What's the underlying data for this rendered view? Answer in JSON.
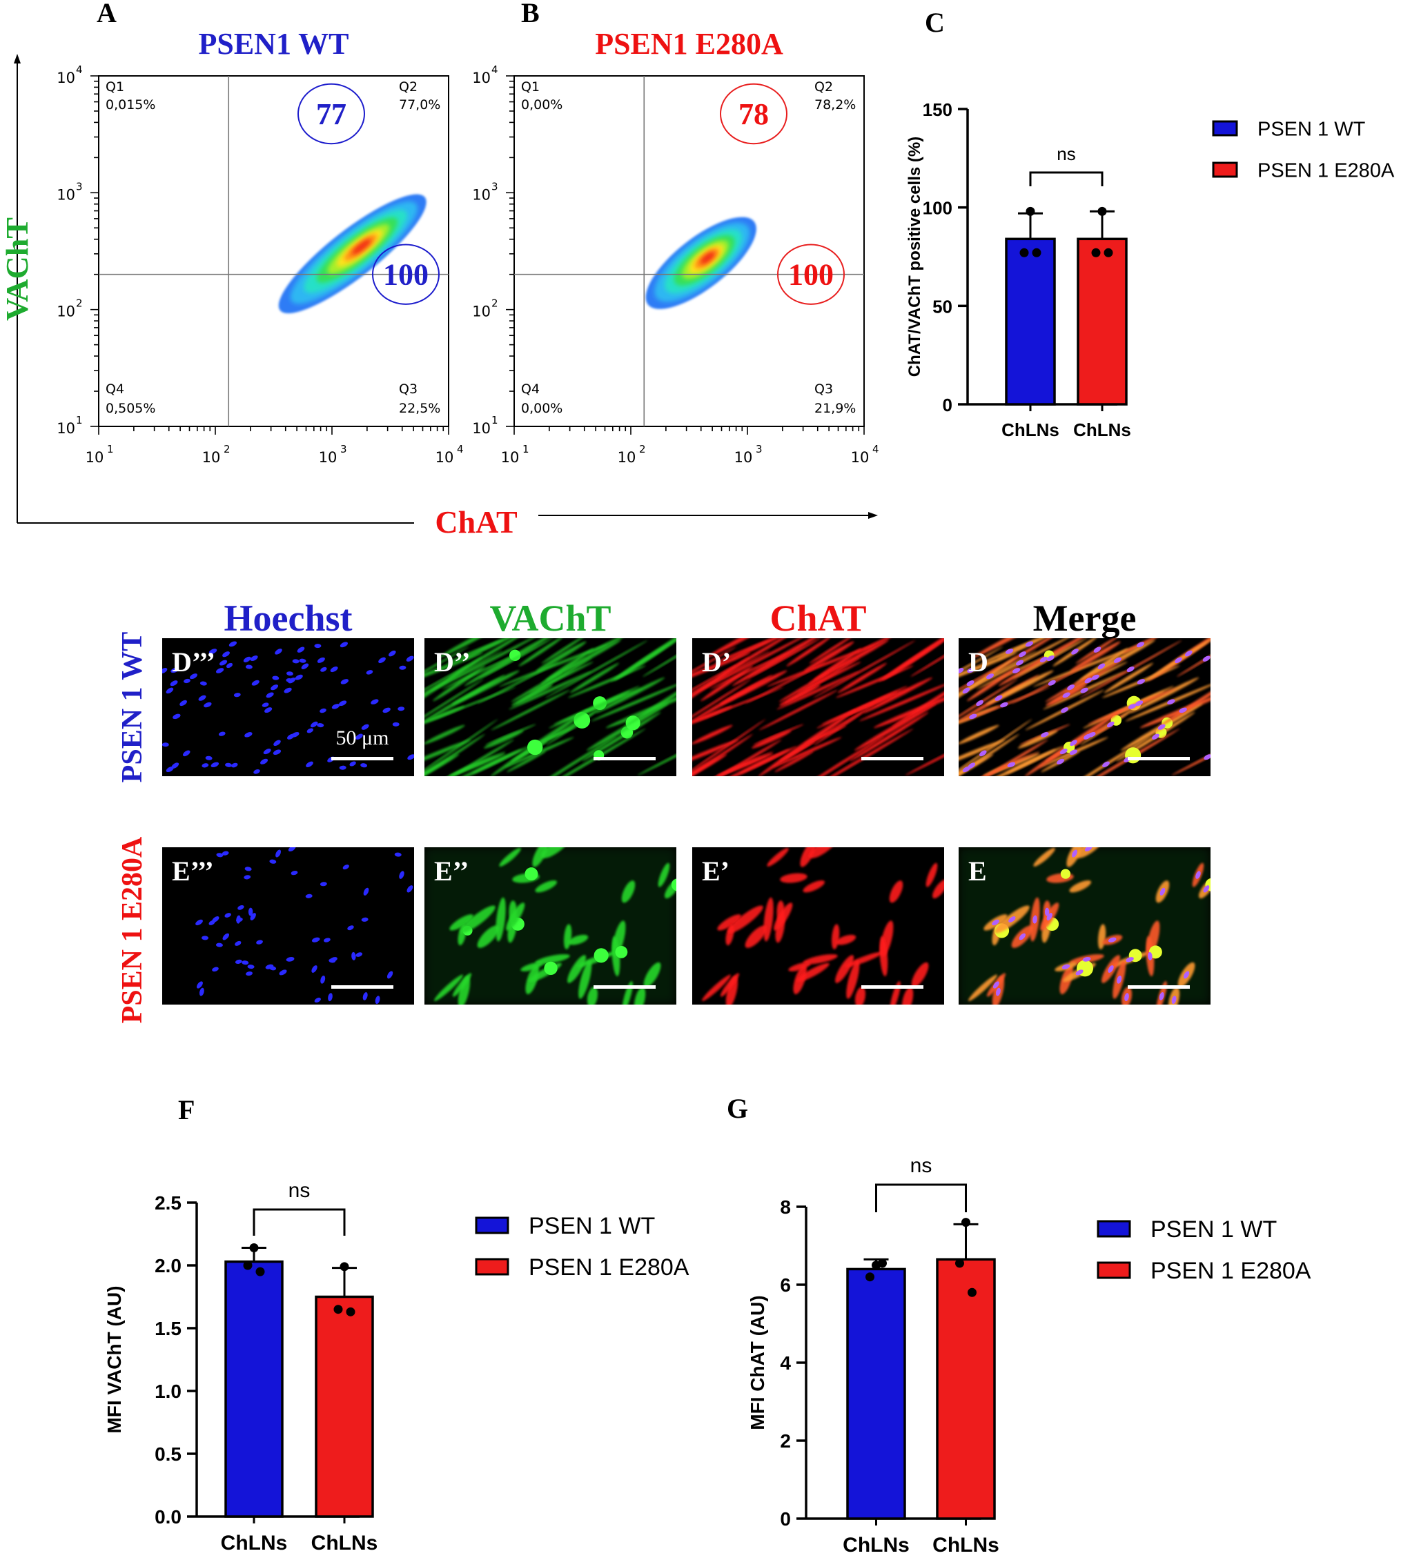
{
  "colors": {
    "blue": "#1414d8",
    "red": "#ee1c1c",
    "green": "#1eab2f",
    "title_blue": "#2020c8",
    "title_red": "#ee1111",
    "circle_blue": "#1c1ccc",
    "circle_red": "#e81e1e"
  },
  "flow_axes": {
    "y_label": "VAChT",
    "x_label": "ChAT"
  },
  "chart_data": [
    {
      "id": "A",
      "panel_letter": "A",
      "type": "density_scatter",
      "title": "PSEN1 WT",
      "x_scale": "log",
      "y_scale": "log",
      "xlim": [
        10,
        10000
      ],
      "ylim": [
        10,
        10000
      ],
      "x_ticks": [
        "10",
        "10",
        "10",
        "10"
      ],
      "x_tick_exps": [
        "1",
        "2",
        "3",
        "4"
      ],
      "y_ticks": [
        "10",
        "10",
        "10",
        "10"
      ],
      "y_tick_exps": [
        "1",
        "2",
        "3",
        "4"
      ],
      "gate": {
        "x": 130,
        "y": 200
      },
      "quadrants": {
        "q1": {
          "name": "Q1",
          "value": "0,015%"
        },
        "q2": {
          "name": "Q2",
          "value": "77,0%"
        },
        "q3": {
          "name": "Q3",
          "value": "22,5%"
        },
        "q4": {
          "name": "Q4",
          "value": "0,505%"
        }
      },
      "circled_labels": [
        "77",
        "100"
      ],
      "population": {
        "center_x": 1500,
        "center_y": 300,
        "spread_x_decades": 0.75,
        "spread_y_decades": 0.42
      }
    },
    {
      "id": "B",
      "panel_letter": "B",
      "type": "density_scatter",
      "title": "PSEN1 E280A",
      "x_scale": "log",
      "y_scale": "log",
      "xlim": [
        10,
        10000
      ],
      "ylim": [
        10,
        10000
      ],
      "x_ticks": [
        "10",
        "10",
        "10",
        "10"
      ],
      "x_tick_exps": [
        "1",
        "2",
        "3",
        "4"
      ],
      "y_ticks": [
        "10",
        "10",
        "10",
        "10"
      ],
      "y_tick_exps": [
        "1",
        "2",
        "3",
        "4"
      ],
      "gate": {
        "x": 130,
        "y": 200
      },
      "quadrants": {
        "q1": {
          "name": "Q1",
          "value": "0,00%"
        },
        "q2": {
          "name": "Q2",
          "value": "78,2%"
        },
        "q3": {
          "name": "Q3",
          "value": "21,9%"
        },
        "q4": {
          "name": "Q4",
          "value": "0,00%"
        }
      },
      "circled_labels": [
        "78",
        "100"
      ],
      "population": {
        "center_x": 400,
        "center_y": 250,
        "spread_x_decades": 0.55,
        "spread_y_decades": 0.45
      }
    },
    {
      "id": "C",
      "panel_letter": "C",
      "type": "bar",
      "ylabel": "ChAT/VAChT positive cells (%)",
      "categories": [
        "ChLNs",
        "ChLNs"
      ],
      "series": [
        {
          "name": "PSEN 1 WT",
          "value": 84,
          "error": 13,
          "points": [
            98,
            77,
            77
          ]
        },
        {
          "name": "PSEN 1 E280A",
          "value": 84,
          "error": 14,
          "points": [
            98,
            77,
            77
          ]
        }
      ],
      "ylim": [
        0,
        150
      ],
      "y_ticks": [
        "0",
        "50",
        "100",
        "150"
      ],
      "significance": "ns",
      "legend_position": "right"
    },
    {
      "id": "F",
      "panel_letter": "F",
      "type": "bar",
      "ylabel": "MFI VAChT (AU)",
      "categories": [
        "ChLNs",
        "ChLNs"
      ],
      "series": [
        {
          "name": "PSEN 1 WT",
          "value": 2.03,
          "error": 0.11,
          "points": [
            2.14,
            2.0,
            1.95
          ]
        },
        {
          "name": "PSEN 1 E280A",
          "value": 1.75,
          "error": 0.23,
          "points": [
            1.99,
            1.65,
            1.63
          ]
        }
      ],
      "ylim": [
        0,
        2.5
      ],
      "y_ticks": [
        "0.0",
        "0.5",
        "1.0",
        "1.5",
        "2.0",
        "2.5"
      ],
      "significance": "ns",
      "legend_position": "right"
    },
    {
      "id": "G",
      "panel_letter": "G",
      "type": "bar",
      "ylabel": "MFI ChAT (AU)",
      "categories": [
        "ChLNs",
        "ChLNs"
      ],
      "series": [
        {
          "name": "PSEN 1 WT",
          "value": 6.4,
          "error": 0.25,
          "points": [
            6.5,
            6.2,
            6.55
          ]
        },
        {
          "name": "PSEN 1 E280A",
          "value": 6.65,
          "error": 0.9,
          "points": [
            7.6,
            6.55,
            5.8
          ]
        }
      ],
      "ylim": [
        0,
        8
      ],
      "y_ticks": [
        "0",
        "2",
        "4",
        "6",
        "8"
      ],
      "significance": "ns",
      "legend_position": "right"
    }
  ],
  "microscopy": {
    "column_headers": [
      "Hoechst",
      "VAChT",
      "ChAT",
      "Merge"
    ],
    "row_labels": [
      "PSEN 1 WT",
      "PSEN 1 E280A"
    ],
    "panel_labels": [
      [
        "D’’’",
        "D’’",
        "D’",
        "D"
      ],
      [
        "E’’’",
        "E’’",
        "E’",
        "E"
      ]
    ],
    "scale_bar_label": "50 μm",
    "channels": [
      "nuclei",
      "vacht",
      "chat",
      "merge"
    ]
  }
}
